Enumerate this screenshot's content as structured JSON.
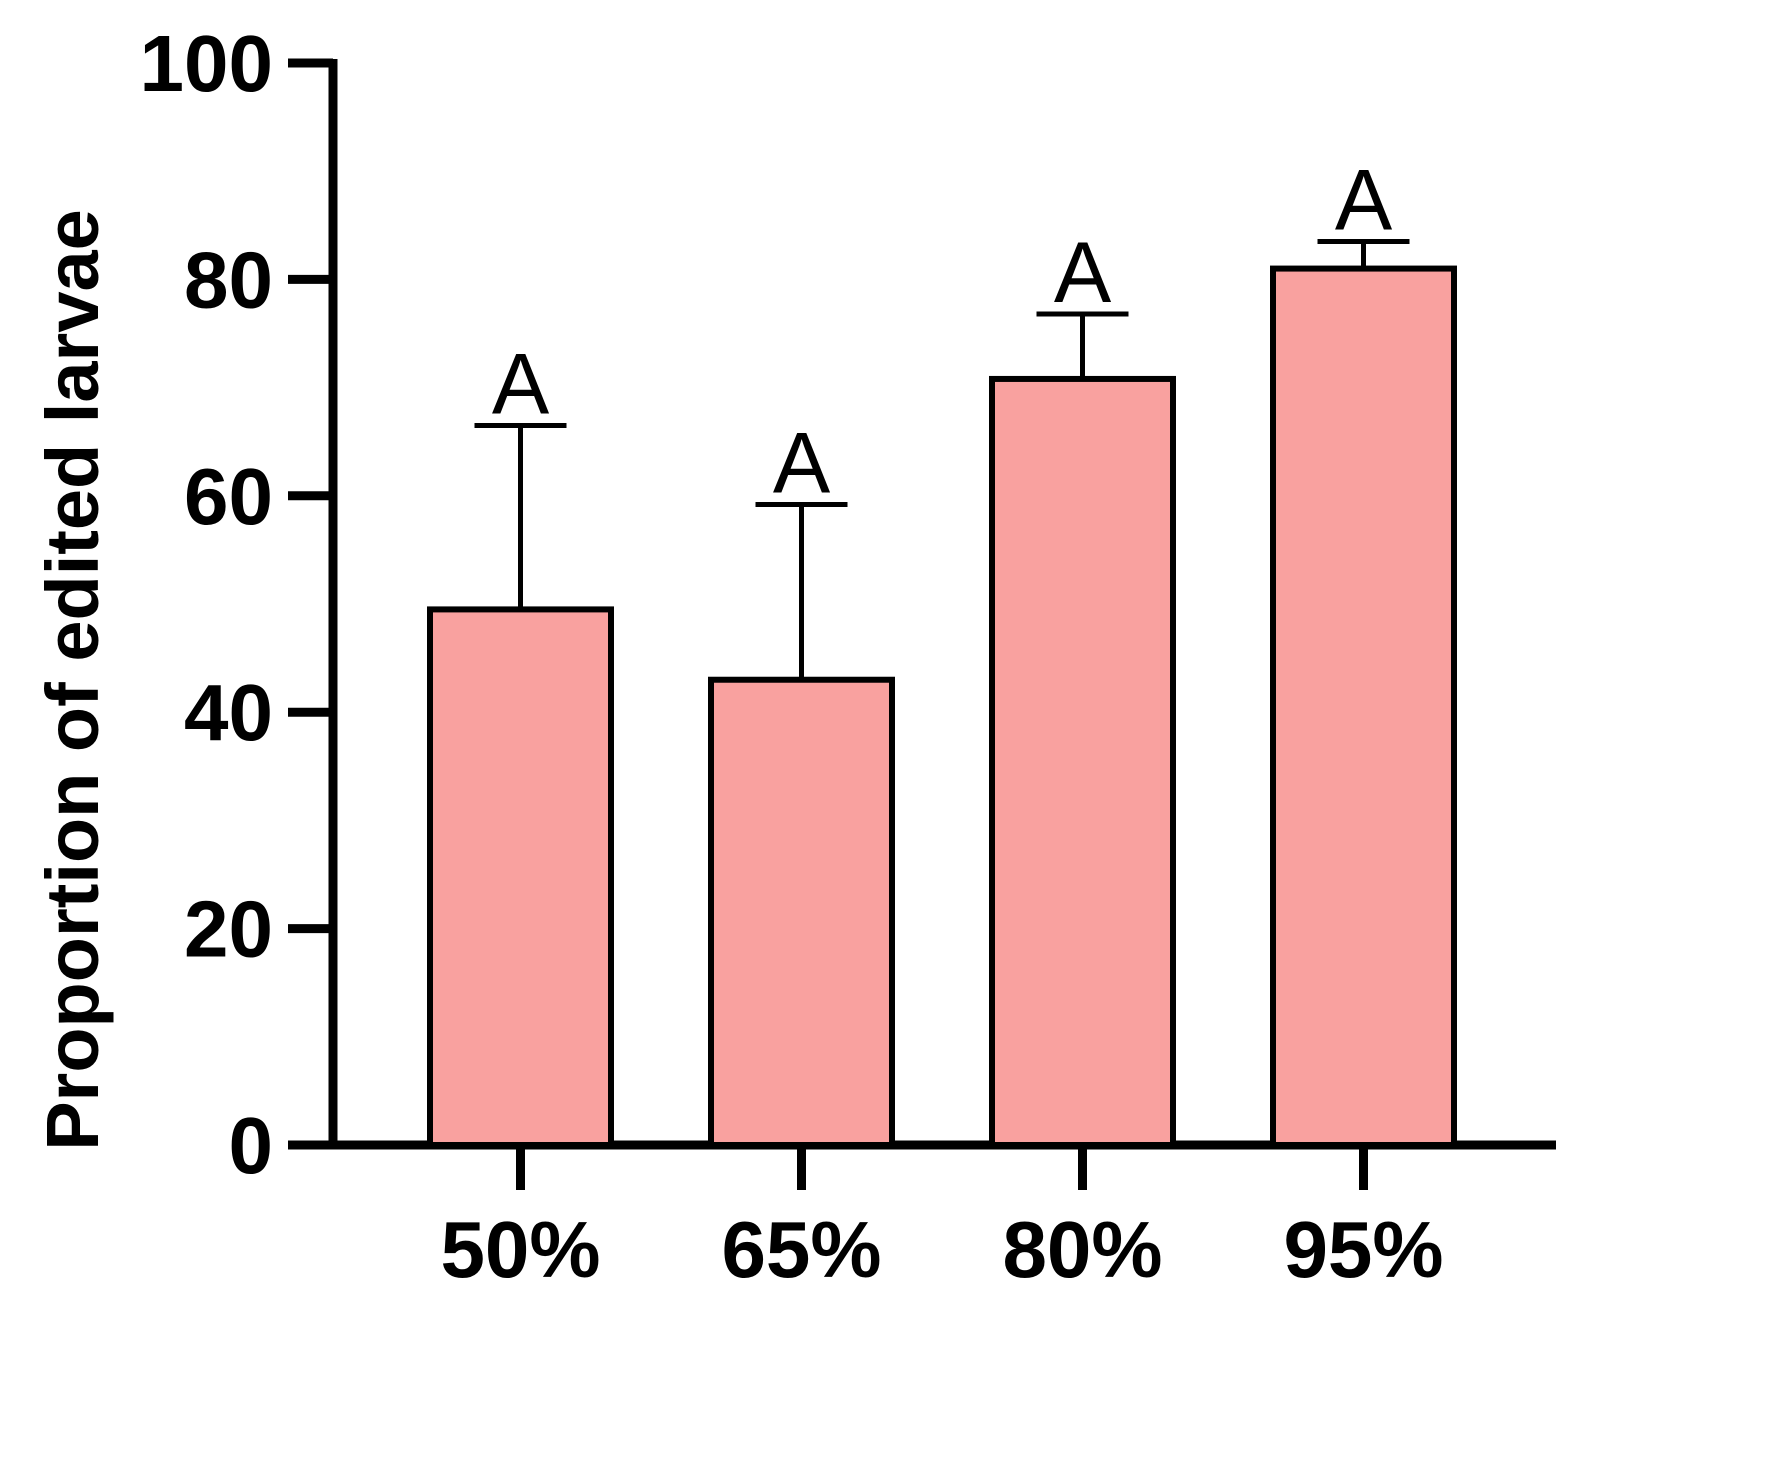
{
  "chart_data": {
    "type": "bar",
    "title": "",
    "xlabel": "",
    "ylabel": "Proportion of edited larvae",
    "categories": [
      "50%",
      "65%",
      "80%",
      "95%"
    ],
    "values": [
      49.5,
      43,
      70.8,
      81
    ],
    "error_upper": [
      66.5,
      59.2,
      76.8,
      83.5
    ],
    "significance_letters": [
      "A",
      "A",
      "A",
      "A"
    ],
    "ylim": [
      0,
      100
    ],
    "yticks": [
      0,
      20,
      40,
      60,
      80,
      100
    ],
    "ytick_labels": [
      "0",
      "20",
      "40",
      "60",
      "80",
      "100"
    ],
    "grid": false,
    "legend": "none",
    "colors": {
      "bar_fill": "#F9A19F",
      "stroke": "#000000"
    }
  }
}
